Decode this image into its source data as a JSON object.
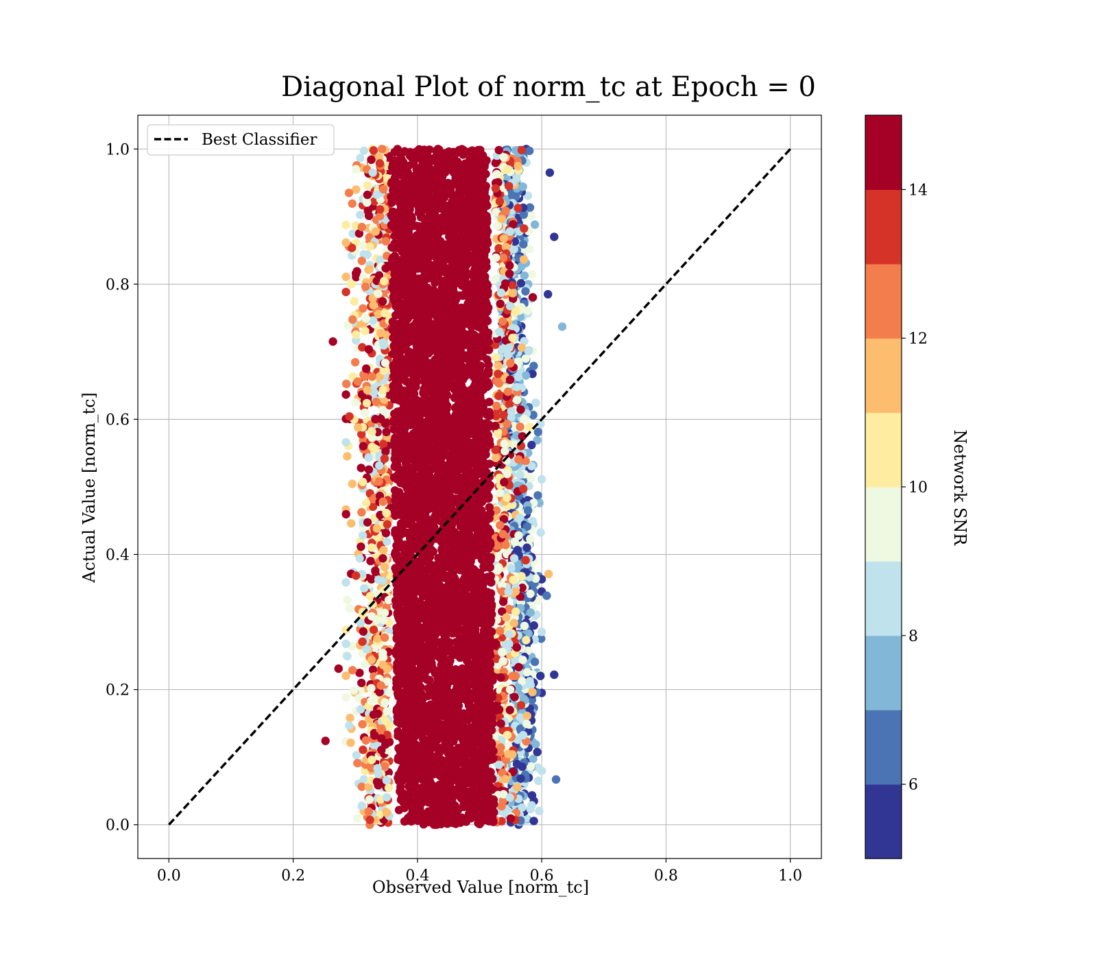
{
  "chart_data": {
    "type": "scatter",
    "title": "Diagonal Plot of norm_tc at Epoch = 0",
    "xlabel": "Observed Value [norm_tc]",
    "ylabel": "Actual Value [norm_tc]",
    "xlim": [
      -0.05,
      1.05
    ],
    "ylim": [
      -0.05,
      1.05
    ],
    "xticks": [
      "0.0",
      "0.2",
      "0.4",
      "0.6",
      "0.8",
      "1.0"
    ],
    "yticks": [
      "0.0",
      "0.2",
      "0.4",
      "0.6",
      "0.8",
      "1.0"
    ],
    "grid": true,
    "legend": {
      "position": "top-left",
      "entries": [
        "Best Classifier"
      ]
    },
    "reference_line": {
      "name": "Best Classifier",
      "style": "dashed",
      "color": "#000000",
      "points": [
        [
          0,
          0
        ],
        [
          1,
          1
        ]
      ]
    },
    "colorbar": {
      "label": "Network SNR",
      "min": 5,
      "max": 15,
      "ticks": [
        "6",
        "8",
        "10",
        "12",
        "14"
      ],
      "colors": [
        "#313695",
        "#4a74b4",
        "#82b7d8",
        "#bfe2ec",
        "#eff8e0",
        "#feeca0",
        "#fdbd6f",
        "#f47d4d",
        "#d63328",
        "#a50026"
      ]
    },
    "cloud": {
      "description_x_range": [
        0.25,
        0.64
      ],
      "core_x_range": [
        0.36,
        0.52
      ],
      "y_range": [
        0.0,
        1.0
      ],
      "dominant_snr": 15
    },
    "outliers": [
      {
        "x": 0.613,
        "y": 0.965,
        "snr": 5.5
      },
      {
        "x": 0.62,
        "y": 0.87,
        "snr": 5.5
      },
      {
        "x": 0.633,
        "y": 0.737,
        "snr": 7.5
      },
      {
        "x": 0.62,
        "y": 0.222,
        "snr": 5.5
      },
      {
        "x": 0.623,
        "y": 0.067,
        "snr": 6.5
      },
      {
        "x": 0.252,
        "y": 0.124,
        "snr": 14.5
      },
      {
        "x": 0.264,
        "y": 0.715,
        "snr": 14.5
      },
      {
        "x": 0.273,
        "y": 0.231,
        "snr": 14.5
      },
      {
        "x": 0.61,
        "y": 0.785,
        "snr": 5.5
      },
      {
        "x": 0.608,
        "y": 0.339,
        "snr": 6.5
      },
      {
        "x": 0.611,
        "y": 0.371,
        "snr": 11.5
      }
    ]
  }
}
